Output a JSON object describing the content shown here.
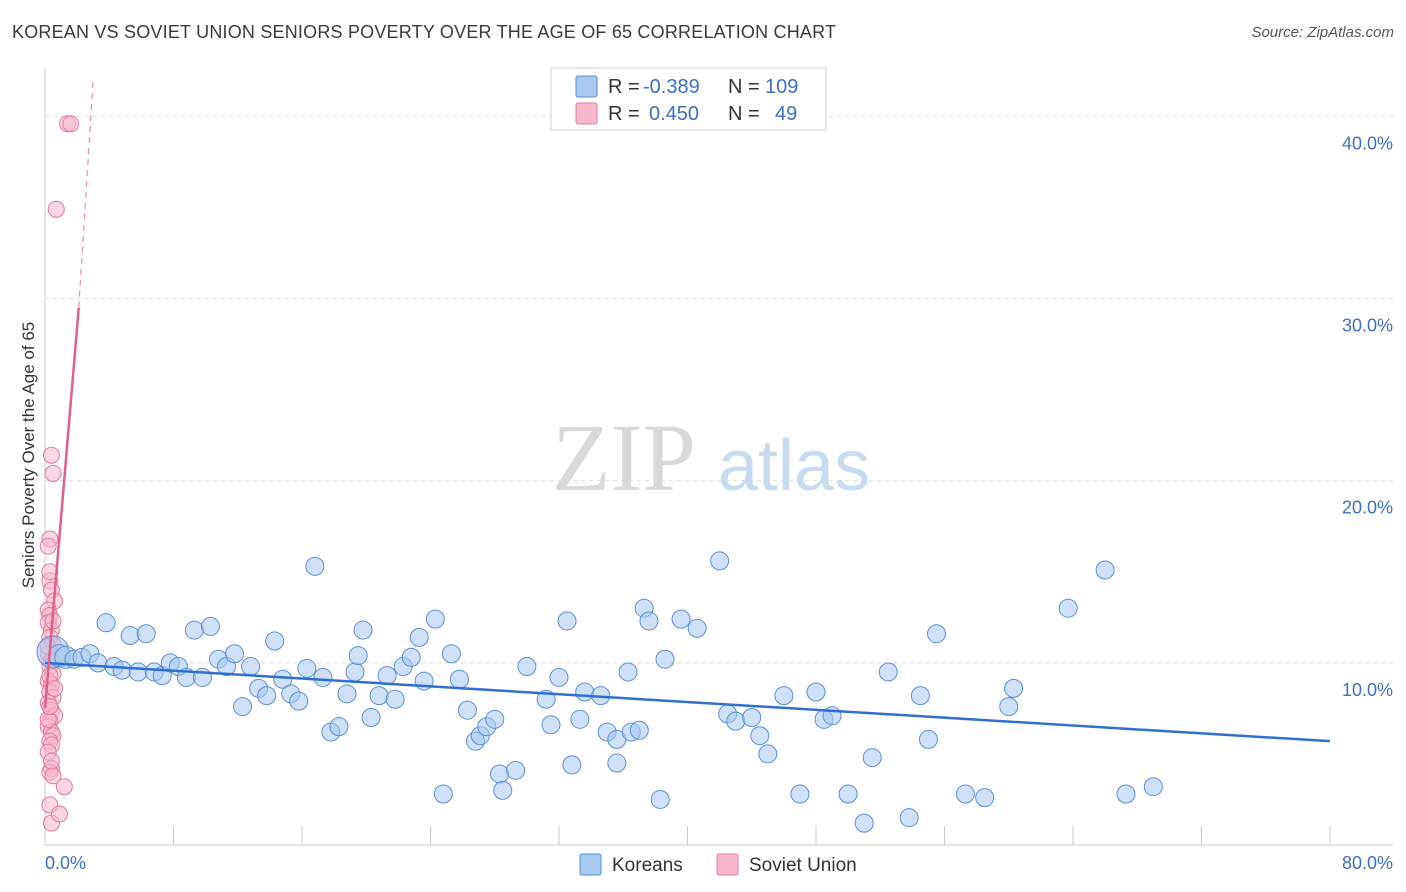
{
  "title": "KOREAN VS SOVIET UNION SENIORS POVERTY OVER THE AGE OF 65 CORRELATION CHART",
  "source": "Source: ZipAtlas.com",
  "watermark": {
    "zip": "ZIP",
    "atlas": "atlas"
  },
  "legend": {
    "koreans": {
      "r_label": "R = ",
      "r_value": "-0.389",
      "n_label": "N = ",
      "n_value": "109"
    },
    "soviet": {
      "r_label": "R = ",
      "r_value": "0.450",
      "n_label": "N = ",
      "n_value": "49"
    }
  },
  "bottom_legend": {
    "koreans": "Koreans",
    "soviet": "Soviet Union"
  },
  "colors": {
    "koreans_fill": "#a8c8f0",
    "koreans_stroke": "#5a8fd6",
    "koreans_line": "#2f6fce",
    "soviet_fill": "#f7b8cb",
    "soviet_stroke": "#e07c9c",
    "soviet_line": "#e0608a",
    "tick_label": "#3c6fc4",
    "grid": "#dcdcdc"
  },
  "chart_data": {
    "type": "scatter",
    "title": "KOREAN VS SOVIET UNION SENIORS POVERTY OVER THE AGE OF 65 CORRELATION CHART",
    "xlabel": "",
    "ylabel": "Seniors Poverty Over the Age of 65",
    "xlim": [
      0,
      80
    ],
    "ylim": [
      0,
      42
    ],
    "x_tick_labels": [
      "0.0%",
      "80.0%"
    ],
    "y_ticks": [
      10,
      20,
      30,
      40
    ],
    "y_tick_labels": [
      "10.0%",
      "20.0%",
      "30.0%",
      "40.0%"
    ],
    "grid": true,
    "series": [
      {
        "name": "Koreans",
        "r": -0.389,
        "n": 109,
        "trend": {
          "x0": 0,
          "y0": 10.0,
          "x1": 80,
          "y1": 5.7
        },
        "points": [
          [
            0.5,
            10.6
          ],
          [
            0.9,
            10.4
          ],
          [
            1.3,
            10.3
          ],
          [
            1.8,
            10.2
          ],
          [
            2.3,
            10.3
          ],
          [
            2.8,
            10.5
          ],
          [
            3.3,
            10.0
          ],
          [
            3.8,
            12.2
          ],
          [
            4.3,
            9.8
          ],
          [
            4.8,
            9.6
          ],
          [
            5.3,
            11.5
          ],
          [
            5.8,
            9.5
          ],
          [
            6.3,
            11.6
          ],
          [
            6.8,
            9.5
          ],
          [
            7.3,
            9.3
          ],
          [
            7.8,
            10.0
          ],
          [
            8.3,
            9.8
          ],
          [
            8.8,
            9.2
          ],
          [
            9.3,
            11.8
          ],
          [
            9.8,
            9.2
          ],
          [
            10.3,
            12.0
          ],
          [
            10.8,
            10.2
          ],
          [
            11.3,
            9.8
          ],
          [
            11.8,
            10.5
          ],
          [
            12.3,
            7.6
          ],
          [
            12.8,
            9.8
          ],
          [
            13.3,
            8.6
          ],
          [
            13.8,
            8.2
          ],
          [
            14.3,
            11.2
          ],
          [
            14.8,
            9.1
          ],
          [
            15.3,
            8.3
          ],
          [
            15.8,
            7.9
          ],
          [
            16.3,
            9.7
          ],
          [
            16.8,
            15.3
          ],
          [
            17.3,
            9.2
          ],
          [
            17.8,
            6.2
          ],
          [
            18.3,
            6.5
          ],
          [
            18.8,
            8.3
          ],
          [
            19.3,
            9.5
          ],
          [
            19.5,
            10.4
          ],
          [
            19.8,
            11.8
          ],
          [
            20.3,
            7.0
          ],
          [
            20.8,
            8.2
          ],
          [
            21.3,
            9.3
          ],
          [
            21.8,
            8.0
          ],
          [
            22.3,
            9.8
          ],
          [
            22.8,
            10.3
          ],
          [
            23.3,
            11.4
          ],
          [
            23.6,
            9.0
          ],
          [
            24.3,
            12.4
          ],
          [
            24.8,
            2.8
          ],
          [
            25.3,
            10.5
          ],
          [
            25.8,
            9.1
          ],
          [
            26.3,
            7.4
          ],
          [
            26.8,
            5.7
          ],
          [
            27.1,
            6.0
          ],
          [
            27.5,
            6.5
          ],
          [
            28.0,
            6.9
          ],
          [
            28.3,
            3.9
          ],
          [
            28.5,
            3.0
          ],
          [
            29.3,
            4.1
          ],
          [
            30.0,
            9.8
          ],
          [
            31.2,
            8.0
          ],
          [
            31.5,
            6.6
          ],
          [
            32.0,
            9.2
          ],
          [
            32.5,
            12.3
          ],
          [
            32.8,
            4.4
          ],
          [
            33.3,
            6.9
          ],
          [
            33.6,
            8.4
          ],
          [
            34.6,
            8.2
          ],
          [
            35.0,
            6.2
          ],
          [
            35.6,
            5.8
          ],
          [
            35.6,
            4.5
          ],
          [
            36.3,
            9.5
          ],
          [
            36.5,
            6.2
          ],
          [
            37.0,
            6.3
          ],
          [
            37.3,
            13.0
          ],
          [
            37.6,
            12.3
          ],
          [
            38.3,
            2.5
          ],
          [
            38.6,
            10.2
          ],
          [
            39.6,
            12.4
          ],
          [
            40.6,
            11.9
          ],
          [
            42.0,
            15.6
          ],
          [
            42.5,
            7.2
          ],
          [
            43.0,
            6.8
          ],
          [
            44.0,
            7.0
          ],
          [
            44.5,
            6.0
          ],
          [
            45.0,
            5.0
          ],
          [
            46.0,
            8.2
          ],
          [
            47.0,
            2.8
          ],
          [
            48.0,
            8.4
          ],
          [
            48.5,
            6.9
          ],
          [
            49.0,
            7.1
          ],
          [
            50.0,
            2.8
          ],
          [
            51.0,
            1.2
          ],
          [
            51.5,
            4.8
          ],
          [
            52.5,
            9.5
          ],
          [
            53.8,
            1.5
          ],
          [
            54.5,
            8.2
          ],
          [
            55.0,
            5.8
          ],
          [
            55.5,
            11.6
          ],
          [
            57.3,
            2.8
          ],
          [
            58.5,
            2.6
          ],
          [
            60.0,
            7.6
          ],
          [
            60.3,
            8.6
          ],
          [
            63.7,
            13.0
          ],
          [
            66.0,
            15.1
          ],
          [
            67.3,
            2.8
          ],
          [
            69.0,
            3.2
          ]
        ]
      },
      {
        "name": "Soviet Union",
        "r": 0.45,
        "n": 49,
        "trend": {
          "x0": 0,
          "y0": 7.5,
          "x1": 2.1,
          "y1": 29.5
        },
        "trend_extended": {
          "x0": 2.1,
          "y0": 29.5,
          "x1": 3.0,
          "y1": 42.0
        },
        "points": [
          [
            1.4,
            39.6
          ],
          [
            1.6,
            39.6
          ],
          [
            0.7,
            34.9
          ],
          [
            0.4,
            21.4
          ],
          [
            0.5,
            20.4
          ],
          [
            0.3,
            16.8
          ],
          [
            0.2,
            16.4
          ],
          [
            0.3,
            14.5
          ],
          [
            0.4,
            14.0
          ],
          [
            0.6,
            13.4
          ],
          [
            0.2,
            12.9
          ],
          [
            0.3,
            12.6
          ],
          [
            0.2,
            12.2
          ],
          [
            0.4,
            11.8
          ],
          [
            0.3,
            11.4
          ],
          [
            0.5,
            11.0
          ],
          [
            0.2,
            10.5
          ],
          [
            0.4,
            10.1
          ],
          [
            0.3,
            9.8
          ],
          [
            0.5,
            9.4
          ],
          [
            0.2,
            9.0
          ],
          [
            0.4,
            8.8
          ],
          [
            0.3,
            8.4
          ],
          [
            0.5,
            8.1
          ],
          [
            0.2,
            7.8
          ],
          [
            0.4,
            7.4
          ],
          [
            0.6,
            7.1
          ],
          [
            0.3,
            6.8
          ],
          [
            0.2,
            6.5
          ],
          [
            0.4,
            6.2
          ],
          [
            0.5,
            6.0
          ],
          [
            0.3,
            5.7
          ],
          [
            0.4,
            4.2
          ],
          [
            0.3,
            4.0
          ],
          [
            0.5,
            3.8
          ],
          [
            1.2,
            3.2
          ],
          [
            0.3,
            2.2
          ],
          [
            0.4,
            1.2
          ],
          [
            0.9,
            1.7
          ],
          [
            0.2,
            6.9
          ],
          [
            0.4,
            5.5
          ],
          [
            0.3,
            9.3
          ],
          [
            0.2,
            10.9
          ],
          [
            0.5,
            12.3
          ],
          [
            0.3,
            15.0
          ],
          [
            0.6,
            8.6
          ],
          [
            0.2,
            5.1
          ],
          [
            0.4,
            4.6
          ],
          [
            0.3,
            7.6
          ]
        ]
      }
    ]
  }
}
